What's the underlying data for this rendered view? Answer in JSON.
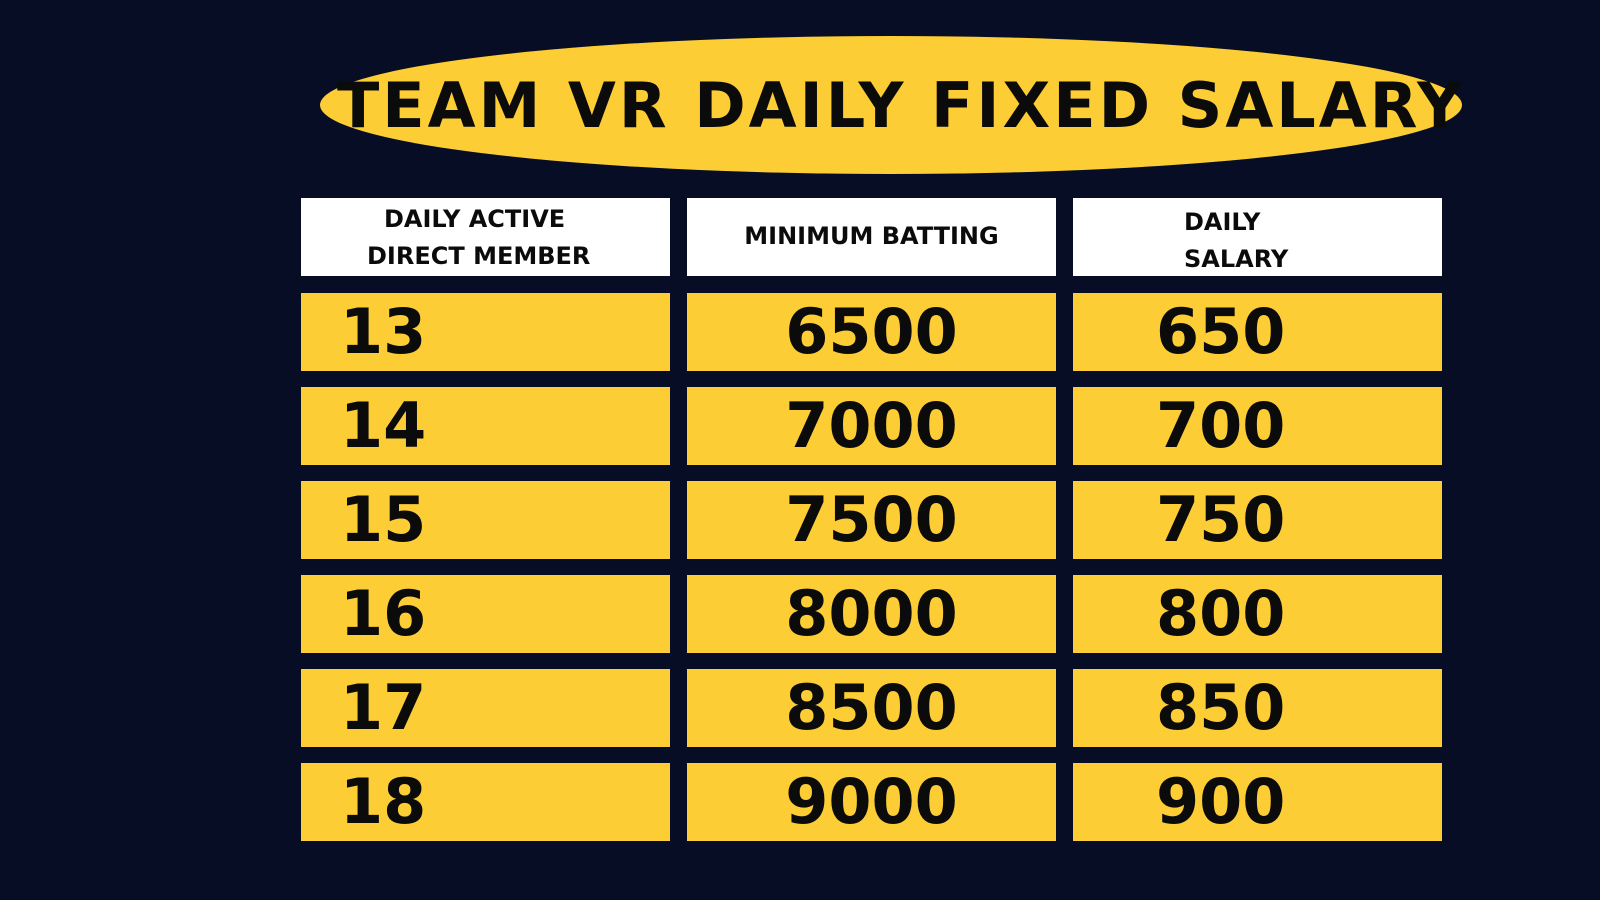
{
  "title": "TEAM VR DAILY FIXED SALARY",
  "headers": {
    "members_line1": "DAILY ACTIVE",
    "members_line2": "DIRECT MEMBER",
    "batting": "MINIMUM BATTING",
    "salary_line1": "DAILY",
    "salary_line2": "SALARY"
  },
  "rows": [
    {
      "members": "13",
      "batting": "6500",
      "salary": "650"
    },
    {
      "members": "14",
      "batting": "7000",
      "salary": "700"
    },
    {
      "members": "15",
      "batting": "7500",
      "salary": "750"
    },
    {
      "members": "16",
      "batting": "8000",
      "salary": "800"
    },
    {
      "members": "17",
      "batting": "8500",
      "salary": "850"
    },
    {
      "members": "18",
      "batting": "9000",
      "salary": "900"
    }
  ],
  "colors": {
    "background": "#070d24",
    "accent": "#fccd34",
    "header_bg": "#ffffff",
    "text": "#0b0b0b"
  }
}
